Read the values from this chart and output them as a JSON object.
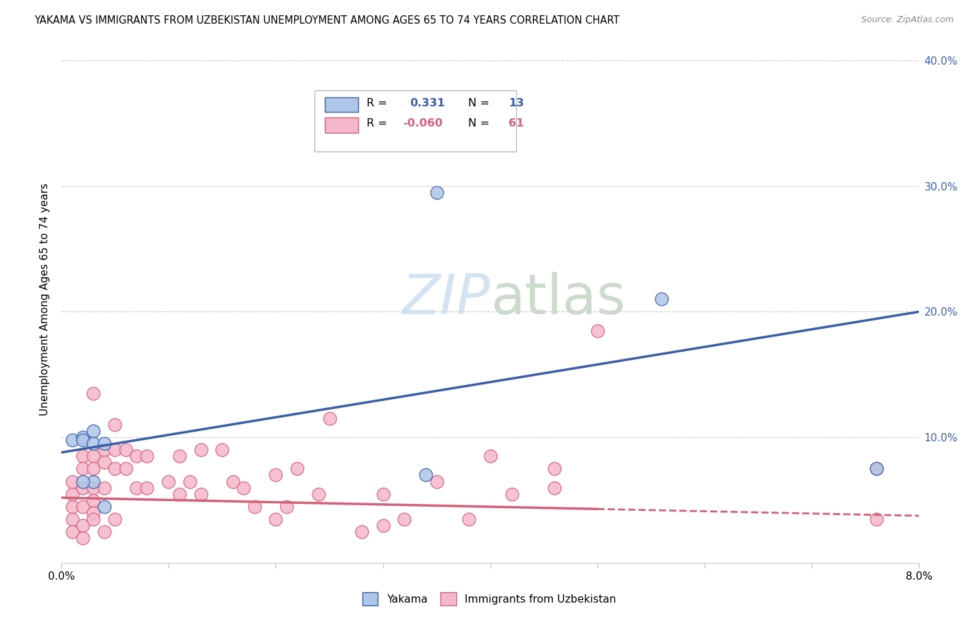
{
  "title": "YAKAMA VS IMMIGRANTS FROM UZBEKISTAN UNEMPLOYMENT AMONG AGES 65 TO 74 YEARS CORRELATION CHART",
  "source": "Source: ZipAtlas.com",
  "ylabel": "Unemployment Among Ages 65 to 74 years",
  "xlim": [
    0.0,
    0.08
  ],
  "ylim": [
    0.0,
    0.42
  ],
  "legend_r_yakama": "0.331",
  "legend_n_yakama": "13",
  "legend_r_uzbekistan": "-0.060",
  "legend_n_uzbekistan": "61",
  "color_yakama": "#aec6e8",
  "color_uzbekistan": "#f5b8cb",
  "line_color_yakama": "#3a5fa8",
  "line_color_uzbekistan": "#d4607a",
  "background_color": "#ffffff",
  "watermark_zip": "ZIP",
  "watermark_atlas": "atlas",
  "line_intercept_yakama": 0.088,
  "line_slope_yakama": 1.4,
  "line_intercept_uzbekistan": 0.052,
  "line_slope_uzbekistan": -0.18,
  "line_solid_end_uzbekistan": 0.05,
  "yakama_x": [
    0.001,
    0.002,
    0.002,
    0.003,
    0.003,
    0.004,
    0.004,
    0.003,
    0.002,
    0.034,
    0.035,
    0.056,
    0.076
  ],
  "yakama_y": [
    0.098,
    0.1,
    0.098,
    0.105,
    0.095,
    0.095,
    0.045,
    0.065,
    0.065,
    0.07,
    0.295,
    0.21,
    0.075
  ],
  "uzbekistan_x": [
    0.001,
    0.001,
    0.001,
    0.001,
    0.001,
    0.002,
    0.002,
    0.002,
    0.002,
    0.002,
    0.002,
    0.003,
    0.003,
    0.003,
    0.003,
    0.003,
    0.003,
    0.003,
    0.004,
    0.004,
    0.004,
    0.004,
    0.005,
    0.005,
    0.005,
    0.005,
    0.006,
    0.006,
    0.007,
    0.007,
    0.008,
    0.008,
    0.01,
    0.011,
    0.011,
    0.012,
    0.013,
    0.013,
    0.015,
    0.016,
    0.017,
    0.018,
    0.02,
    0.02,
    0.021,
    0.022,
    0.024,
    0.025,
    0.028,
    0.03,
    0.032,
    0.035,
    0.038,
    0.04,
    0.042,
    0.046,
    0.05,
    0.076,
    0.076,
    0.046,
    0.03
  ],
  "uzbekistan_y": [
    0.055,
    0.045,
    0.035,
    0.025,
    0.065,
    0.085,
    0.075,
    0.06,
    0.045,
    0.03,
    0.02,
    0.085,
    0.075,
    0.06,
    0.05,
    0.04,
    0.035,
    0.135,
    0.09,
    0.08,
    0.06,
    0.025,
    0.11,
    0.09,
    0.075,
    0.035,
    0.09,
    0.075,
    0.085,
    0.06,
    0.085,
    0.06,
    0.065,
    0.085,
    0.055,
    0.065,
    0.09,
    0.055,
    0.09,
    0.065,
    0.06,
    0.045,
    0.07,
    0.035,
    0.045,
    0.075,
    0.055,
    0.115,
    0.025,
    0.055,
    0.035,
    0.065,
    0.035,
    0.085,
    0.055,
    0.075,
    0.185,
    0.075,
    0.035,
    0.06,
    0.03
  ]
}
